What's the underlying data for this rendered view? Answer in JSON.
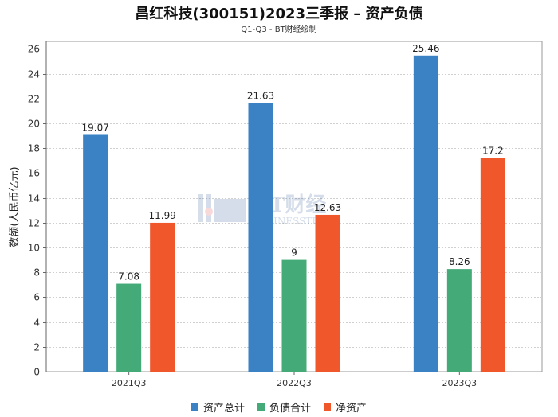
{
  "chart_data": {
    "type": "bar",
    "title": "昌红科技(300151)2023三季报 – 资产负债",
    "subtitle": "Q1-Q3 - BT财经绘制",
    "ylabel": "数额(人民币亿元)",
    "xlabel": "",
    "categories": [
      "2021Q3",
      "2022Q3",
      "2023Q3"
    ],
    "ylim": [
      0,
      26.6
    ],
    "yticks": [
      0,
      2,
      4,
      6,
      8,
      10,
      12,
      14,
      16,
      18,
      20,
      22,
      24,
      26
    ],
    "grid": true,
    "legend_position": "bottom",
    "series": [
      {
        "name": "资产总计",
        "color": "#3a82c4",
        "values": [
          19.07,
          21.63,
          25.46
        ],
        "labels": [
          "19.07",
          "21.63",
          "25.46"
        ]
      },
      {
        "name": "负债合计",
        "color": "#44aa77",
        "values": [
          7.08,
          9,
          8.26
        ],
        "labels": [
          "7.08",
          "9",
          "8.26"
        ]
      },
      {
        "name": "净资产",
        "color": "#f0572a",
        "values": [
          11.99,
          12.63,
          17.2
        ],
        "labels": [
          "11.99",
          "12.63",
          "17.2"
        ]
      }
    ]
  },
  "watermark": {
    "main": "BT财经",
    "sub": "BUSINESSTIMES"
  }
}
